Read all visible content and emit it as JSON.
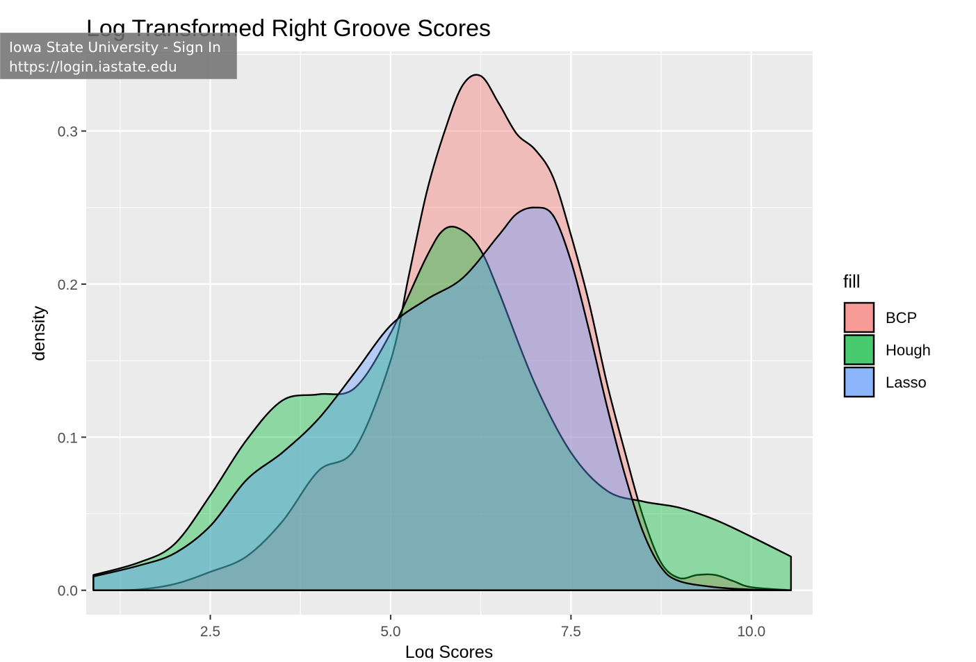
{
  "tooltip": {
    "title": "Iowa State University - Sign In",
    "url": "https://login.iastate.edu"
  },
  "chart_data": {
    "type": "area",
    "title": "Log Transformed Right Groove Scores",
    "xlabel": "Log Scores",
    "ylabel": "density",
    "xlim": [
      0.78,
      10.85
    ],
    "ylim": [
      -0.016,
      0.352
    ],
    "x_ticks": [
      2.5,
      5.0,
      7.5,
      10.0
    ],
    "x_tick_labels": [
      "2.5",
      "5.0",
      "7.5",
      "10.0"
    ],
    "y_ticks": [
      0.0,
      0.1,
      0.2,
      0.3
    ],
    "y_tick_labels": [
      "0.0",
      "0.1",
      "0.2",
      "0.3"
    ],
    "grid": true,
    "legend": {
      "title": "fill",
      "position": "right",
      "entries": [
        "BCP",
        "Hough",
        "Lasso"
      ]
    },
    "series": [
      {
        "name": "BCP",
        "color": "#F8766D",
        "x": [
          1.0,
          1.5,
          2.0,
          2.5,
          3.0,
          3.5,
          4.0,
          4.5,
          5.0,
          5.25,
          5.5,
          5.75,
          6.0,
          6.25,
          6.5,
          6.75,
          7.0,
          7.25,
          7.5,
          7.75,
          8.0,
          8.25,
          8.5,
          8.75,
          9.0,
          9.25,
          9.5,
          9.75,
          10.0,
          10.55
        ],
        "y": [
          0.0,
          0.0005,
          0.004,
          0.012,
          0.022,
          0.045,
          0.078,
          0.092,
          0.15,
          0.205,
          0.26,
          0.3,
          0.33,
          0.336,
          0.318,
          0.298,
          0.288,
          0.27,
          0.232,
          0.188,
          0.135,
          0.09,
          0.048,
          0.018,
          0.008,
          0.01,
          0.01,
          0.006,
          0.002,
          0.0
        ]
      },
      {
        "name": "Hough",
        "color": "#00BA38",
        "x": [
          0.88,
          1.5,
          2.0,
          2.5,
          3.0,
          3.5,
          4.0,
          4.5,
          5.0,
          5.5,
          5.75,
          6.0,
          6.25,
          6.5,
          7.0,
          7.5,
          8.0,
          8.5,
          9.0,
          9.5,
          10.0,
          10.55
        ],
        "y": [
          0.01,
          0.018,
          0.03,
          0.062,
          0.098,
          0.124,
          0.128,
          0.132,
          0.168,
          0.218,
          0.236,
          0.235,
          0.222,
          0.195,
          0.135,
          0.09,
          0.065,
          0.058,
          0.054,
          0.046,
          0.035,
          0.022
        ]
      },
      {
        "name": "Lasso",
        "color": "#619CFF",
        "x": [
          0.88,
          1.5,
          2.0,
          2.5,
          3.0,
          3.5,
          4.0,
          4.5,
          5.0,
          5.5,
          6.0,
          6.5,
          6.75,
          7.0,
          7.25,
          7.5,
          7.75,
          8.0,
          8.25,
          8.5,
          8.75,
          9.0,
          9.5,
          10.0,
          10.55
        ],
        "y": [
          0.009,
          0.016,
          0.024,
          0.042,
          0.072,
          0.09,
          0.112,
          0.142,
          0.173,
          0.19,
          0.204,
          0.232,
          0.246,
          0.25,
          0.245,
          0.215,
          0.17,
          0.12,
          0.075,
          0.038,
          0.015,
          0.006,
          0.002,
          0.0005,
          0.0
        ]
      }
    ]
  }
}
